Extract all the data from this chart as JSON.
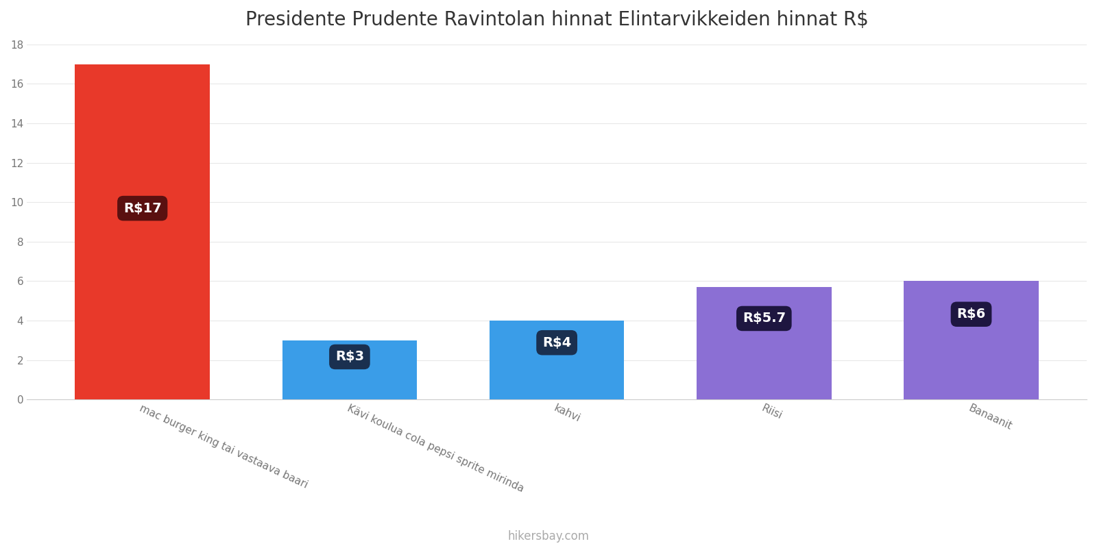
{
  "title": "Presidente Prudente Ravintolan hinnat Elintarvikkeiden hinnat R$",
  "categories": [
    "mac burger king tai vastaava baari",
    "Kävi koulua cola pepsi sprite mirinda",
    "kahvi",
    "Riisi",
    "Banaanit"
  ],
  "values": [
    17,
    3,
    4,
    5.7,
    6
  ],
  "bar_colors": [
    "#e8392a",
    "#3a9de8",
    "#3a9de8",
    "#8b6fd4",
    "#8b6fd4"
  ],
  "label_texts": [
    "R$17",
    "R$3",
    "R$4",
    "R$5.7",
    "R$6"
  ],
  "label_bg_colors": [
    "#5a1010",
    "#1a3050",
    "#1a3050",
    "#1e1640",
    "#1e1640"
  ],
  "ylim": [
    0,
    18
  ],
  "yticks": [
    0,
    2,
    4,
    6,
    8,
    10,
    12,
    14,
    16,
    18
  ],
  "title_fontsize": 20,
  "background_color": "#ffffff",
  "watermark": "hikersbay.com"
}
